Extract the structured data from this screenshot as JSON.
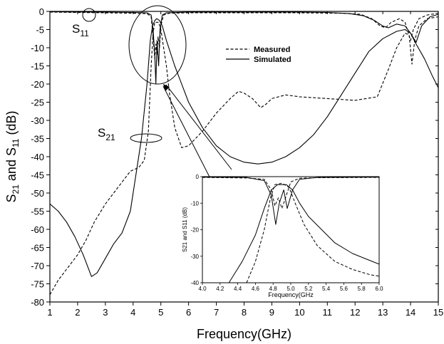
{
  "chart_data": [
    {
      "type": "line",
      "title": "",
      "xlabel": "Frequency(GHz)",
      "ylabel_main": "S",
      "ylabel_sub1": "21",
      "ylabel_mid": " and S",
      "ylabel_sub2": "11",
      "ylabel_end": " (dB)",
      "xlim": [
        1,
        15
      ],
      "ylim": [
        -80,
        0
      ],
      "x_ticks": [
        1,
        2,
        3,
        4,
        5,
        6,
        7,
        8,
        9,
        10,
        11,
        12,
        13,
        14,
        15
      ],
      "x_tick_labels": [
        "1",
        "2",
        "3",
        "4",
        "5",
        "6",
        "7",
        "8",
        "9",
        "10",
        "11",
        "12",
        "13",
        "14",
        "15"
      ],
      "y_ticks": [
        0,
        -5,
        -10,
        -15,
        -20,
        -25,
        -30,
        -35,
        -40,
        -45,
        -50,
        -55,
        -60,
        -65,
        -70,
        -75,
        -80
      ],
      "y_tick_labels": [
        "0",
        "-5",
        "-10",
        "-15",
        "-20",
        "-25",
        "-30",
        "-35",
        "-40",
        "-45",
        "-50",
        "-55",
        "-60",
        "-65",
        "-70",
        "-75",
        "-80"
      ],
      "legend": {
        "placement": "upper-center",
        "entries": [
          {
            "label": "Measured",
            "style": "dashed"
          },
          {
            "label": "Simulated",
            "style": "solid"
          }
        ]
      },
      "annotations": [
        {
          "main": "S",
          "sub": "11",
          "x": 2.5,
          "y": -2.5
        },
        {
          "main": "S",
          "sub": "21",
          "x": 4.5,
          "y": -35
        }
      ],
      "series": [
        {
          "label": "Measured S21",
          "style": "dashed",
          "points": [
            [
              1.0,
              -78
            ],
            [
              1.3,
              -74
            ],
            [
              1.6,
              -71
            ],
            [
              2.0,
              -67
            ],
            [
              2.3,
              -63
            ],
            [
              2.6,
              -58
            ],
            [
              3.0,
              -53
            ],
            [
              3.3,
              -50
            ],
            [
              3.6,
              -47
            ],
            [
              3.9,
              -44
            ],
            [
              4.2,
              -43
            ],
            [
              4.4,
              -41
            ],
            [
              4.55,
              -33
            ],
            [
              4.65,
              -15
            ],
            [
              4.72,
              -6
            ],
            [
              4.78,
              -3
            ],
            [
              4.85,
              -3
            ],
            [
              4.92,
              -3
            ],
            [
              5.0,
              -5
            ],
            [
              5.1,
              -10
            ],
            [
              5.2,
              -15
            ],
            [
              5.3,
              -22
            ],
            [
              5.5,
              -32
            ],
            [
              5.75,
              -37.5
            ],
            [
              6.0,
              -37
            ],
            [
              6.5,
              -33
            ],
            [
              7.0,
              -28
            ],
            [
              7.5,
              -24
            ],
            [
              7.8,
              -22
            ],
            [
              8.0,
              -22.5
            ],
            [
              8.3,
              -24
            ],
            [
              8.6,
              -26.5
            ],
            [
              8.8,
              -25.5
            ],
            [
              9.0,
              -24
            ],
            [
              9.5,
              -23
            ],
            [
              10.0,
              -23.5
            ],
            [
              11.0,
              -24
            ],
            [
              12.0,
              -24.5
            ],
            [
              12.8,
              -23.5
            ],
            [
              13.2,
              -16
            ],
            [
              13.5,
              -10
            ],
            [
              13.8,
              -6
            ],
            [
              13.95,
              -6.5
            ],
            [
              14.05,
              -14.5
            ],
            [
              14.15,
              -8
            ],
            [
              14.3,
              -4
            ],
            [
              14.6,
              -2
            ],
            [
              15.0,
              -1.5
            ]
          ]
        },
        {
          "label": "Simulated S21",
          "style": "solid",
          "points": [
            [
              1.0,
              -53
            ],
            [
              1.3,
              -55
            ],
            [
              1.6,
              -58
            ],
            [
              1.9,
              -62
            ],
            [
              2.2,
              -67
            ],
            [
              2.5,
              -73
            ],
            [
              2.7,
              -72
            ],
            [
              3.0,
              -68
            ],
            [
              3.3,
              -64
            ],
            [
              3.6,
              -61
            ],
            [
              3.9,
              -55
            ],
            [
              4.1,
              -45
            ],
            [
              4.3,
              -35
            ],
            [
              4.5,
              -20
            ],
            [
              4.62,
              -8
            ],
            [
              4.7,
              -4
            ],
            [
              4.78,
              -2.5
            ],
            [
              4.85,
              -2
            ],
            [
              4.95,
              -2.5
            ],
            [
              5.05,
              -4
            ],
            [
              5.2,
              -8
            ],
            [
              5.5,
              -15
            ],
            [
              6.0,
              -25
            ],
            [
              6.5,
              -32
            ],
            [
              7.0,
              -37
            ],
            [
              7.5,
              -40
            ],
            [
              8.0,
              -41.5
            ],
            [
              8.5,
              -42
            ],
            [
              9.0,
              -41.5
            ],
            [
              9.5,
              -40
            ],
            [
              10.0,
              -37.5
            ],
            [
              10.5,
              -34
            ],
            [
              11.0,
              -29
            ],
            [
              11.5,
              -23
            ],
            [
              12.0,
              -17
            ],
            [
              12.5,
              -11
            ],
            [
              13.0,
              -7.5
            ],
            [
              13.5,
              -5.5
            ],
            [
              13.8,
              -5
            ],
            [
              14.0,
              -6
            ],
            [
              14.2,
              -9
            ],
            [
              14.5,
              -13
            ],
            [
              14.8,
              -18
            ],
            [
              15.0,
              -21
            ]
          ]
        },
        {
          "label": "Measured S11",
          "style": "dashed",
          "points": [
            [
              1.0,
              -0.2
            ],
            [
              2.0,
              -0.3
            ],
            [
              3.0,
              -0.4
            ],
            [
              4.0,
              -0.5
            ],
            [
              4.5,
              -0.6
            ],
            [
              4.65,
              -1.5
            ],
            [
              4.72,
              -7
            ],
            [
              4.78,
              -13
            ],
            [
              4.82,
              -9
            ],
            [
              4.86,
              -12
            ],
            [
              4.9,
              -7
            ],
            [
              4.95,
              -10
            ],
            [
              5.0,
              -4
            ],
            [
              5.1,
              -1
            ],
            [
              5.3,
              -0.5
            ],
            [
              6.0,
              -0.4
            ],
            [
              8.0,
              -0.4
            ],
            [
              10.0,
              -0.4
            ],
            [
              11.5,
              -0.5
            ],
            [
              12.2,
              -0.8
            ],
            [
              12.6,
              -2
            ],
            [
              12.9,
              -4
            ],
            [
              13.1,
              -4.5
            ],
            [
              13.3,
              -3
            ],
            [
              13.6,
              -2
            ],
            [
              13.8,
              -3
            ],
            [
              14.0,
              -8
            ],
            [
              14.1,
              -5
            ],
            [
              14.3,
              -2
            ],
            [
              14.6,
              -1
            ],
            [
              15.0,
              -0.5
            ]
          ]
        },
        {
          "label": "Simulated S11",
          "style": "solid",
          "points": [
            [
              1.0,
              -0.1
            ],
            [
              2.0,
              -0.15
            ],
            [
              3.0,
              -0.2
            ],
            [
              4.0,
              -0.3
            ],
            [
              4.5,
              -0.4
            ],
            [
              4.65,
              -1
            ],
            [
              4.72,
              -5
            ],
            [
              4.78,
              -12
            ],
            [
              4.82,
              -20
            ],
            [
              4.86,
              -8
            ],
            [
              4.92,
              -15
            ],
            [
              4.97,
              -5
            ],
            [
              5.05,
              -1
            ],
            [
              5.2,
              -0.4
            ],
            [
              6.0,
              -0.2
            ],
            [
              8.0,
              -0.2
            ],
            [
              10.0,
              -0.2
            ],
            [
              11.0,
              -0.3
            ],
            [
              11.8,
              -0.6
            ],
            [
              12.3,
              -1.2
            ],
            [
              12.7,
              -2.5
            ],
            [
              13.0,
              -4
            ],
            [
              13.2,
              -4.5
            ],
            [
              13.5,
              -3.5
            ],
            [
              13.8,
              -4
            ],
            [
              14.0,
              -6
            ],
            [
              14.2,
              -8.5
            ],
            [
              14.4,
              -4
            ],
            [
              14.7,
              -1.5
            ],
            [
              15.0,
              -0.8
            ]
          ]
        }
      ]
    },
    {
      "type": "line",
      "title": "",
      "xlabel": "Frequency(GHz",
      "ylabel": "S21 and S11 (dB)",
      "xlim": [
        4.0,
        6.0
      ],
      "ylim": [
        -40,
        0
      ],
      "x_ticks": [
        4.0,
        4.2,
        4.4,
        4.6,
        4.8,
        5.0,
        5.2,
        5.4,
        5.6,
        5.8,
        6.0
      ],
      "x_tick_labels": [
        "4.0",
        "4.2",
        "4.4",
        "4.6",
        "4.8",
        "5.0",
        "5.2",
        "5.4",
        "5.6",
        "5.8",
        "6.0"
      ],
      "y_ticks": [
        0,
        -10,
        -20,
        -30,
        -40
      ],
      "y_tick_labels": [
        "0",
        "-10",
        "-20",
        "-30",
        "-40"
      ],
      "series": [
        {
          "label": "Measured S21",
          "style": "dashed",
          "points": [
            [
              4.5,
              -40
            ],
            [
              4.6,
              -32
            ],
            [
              4.7,
              -20
            ],
            [
              4.77,
              -8
            ],
            [
              4.82,
              -3
            ],
            [
              4.9,
              -2.5
            ],
            [
              4.98,
              -4
            ],
            [
              5.05,
              -10
            ],
            [
              5.15,
              -18
            ],
            [
              5.3,
              -26
            ],
            [
              5.5,
              -32
            ],
            [
              5.7,
              -35
            ],
            [
              5.9,
              -37
            ],
            [
              6.0,
              -37.5
            ]
          ]
        },
        {
          "label": "Simulated S21",
          "style": "solid",
          "points": [
            [
              4.3,
              -40
            ],
            [
              4.45,
              -32
            ],
            [
              4.6,
              -22
            ],
            [
              4.7,
              -12
            ],
            [
              4.78,
              -5
            ],
            [
              4.85,
              -3
            ],
            [
              4.95,
              -3
            ],
            [
              5.02,
              -5
            ],
            [
              5.1,
              -10
            ],
            [
              5.2,
              -15
            ],
            [
              5.35,
              -20
            ],
            [
              5.5,
              -25
            ],
            [
              5.7,
              -29
            ],
            [
              5.85,
              -31
            ],
            [
              6.0,
              -33
            ]
          ]
        },
        {
          "label": "Measured S11",
          "style": "dashed",
          "points": [
            [
              4.0,
              -0.3
            ],
            [
              4.5,
              -0.5
            ],
            [
              4.7,
              -1
            ],
            [
              4.78,
              -5
            ],
            [
              4.82,
              -11
            ],
            [
              4.86,
              -8
            ],
            [
              4.9,
              -12
            ],
            [
              4.95,
              -7
            ],
            [
              5.0,
              -2
            ],
            [
              5.1,
              -0.6
            ],
            [
              5.3,
              -0.4
            ],
            [
              6.0,
              -0.3
            ]
          ]
        },
        {
          "label": "Simulated S11",
          "style": "solid",
          "points": [
            [
              4.0,
              -0.2
            ],
            [
              4.5,
              -0.3
            ],
            [
              4.7,
              -1.5
            ],
            [
              4.78,
              -7
            ],
            [
              4.83,
              -18
            ],
            [
              4.87,
              -10
            ],
            [
              4.92,
              -5
            ],
            [
              4.96,
              -12
            ],
            [
              5.02,
              -5
            ],
            [
              5.1,
              -1
            ],
            [
              5.3,
              -0.3
            ],
            [
              6.0,
              -0.2
            ]
          ]
        }
      ]
    }
  ]
}
